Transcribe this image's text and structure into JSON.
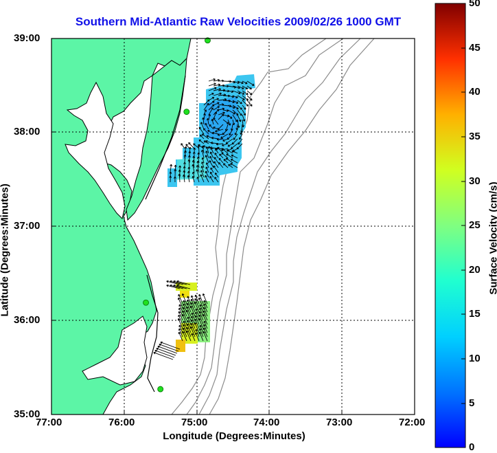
{
  "title": "Southern Mid-Atlantic Raw Velocities 2009/02/26 1000 GMT",
  "x_axis": {
    "label": "Longitude (Degrees:Minutes)",
    "ticks": [
      "77:00",
      "76:00",
      "75:00",
      "74:00",
      "73:00",
      "72:00"
    ]
  },
  "y_axis": {
    "label": "Latitude (Degrees:Minutes)",
    "ticks": [
      "39:00",
      "38:00",
      "37:00",
      "36:00",
      "35:00"
    ]
  },
  "colorbar": {
    "label": "Surface Velocity (cm/s)",
    "ticks": [
      "0",
      "5",
      "10",
      "15",
      "20",
      "25",
      "30",
      "35",
      "40",
      "45",
      "50"
    ],
    "range": [
      0,
      50
    ],
    "colormap": "jet"
  },
  "map": {
    "lon_range": [
      -77,
      -72
    ],
    "lat_range": [
      35,
      39
    ],
    "grid": true,
    "land_color": "#5cf5a6",
    "water_color": "#ffffff",
    "coast_color": "#000000",
    "bathymetry_color": "#8c8c8c",
    "station_color": "#20e020",
    "stations": [
      {
        "lon": -74.85,
        "lat": 38.98
      },
      {
        "lon": -75.14,
        "lat": 38.22
      },
      {
        "lon": -75.7,
        "lat": 36.19
      },
      {
        "lon": -75.5,
        "lat": 35.27
      }
    ]
  }
}
